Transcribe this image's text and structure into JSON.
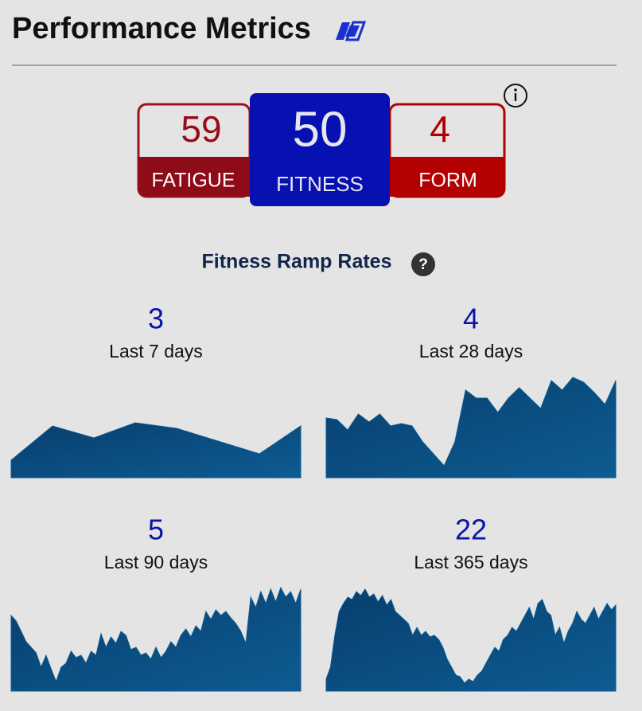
{
  "header": {
    "title": "Performance Metrics"
  },
  "metrics": [
    {
      "value": 59,
      "label": "FATIGUE"
    },
    {
      "value": 50,
      "label": "FITNESS"
    },
    {
      "value": 4,
      "label": "FORM"
    }
  ],
  "section_title": "Fitness Ramp Rates",
  "chart_data": [
    {
      "type": "area",
      "title": 3,
      "subtitle": "Last 7 days",
      "color": "#0b5a8e",
      "ylim": [
        0,
        130
      ],
      "values": [
        22,
        65,
        50,
        69,
        62,
        46,
        30,
        65
      ]
    },
    {
      "type": "area",
      "title": 4,
      "subtitle": "Last 28 days",
      "color": "#0b5a8e",
      "ylim": [
        0,
        130
      ],
      "values": [
        75,
        73,
        60,
        80,
        70,
        80,
        65,
        68,
        65,
        45,
        30,
        15,
        45,
        110,
        100,
        100,
        82,
        100,
        113,
        100,
        87,
        122,
        110,
        126,
        120,
        107,
        92,
        122
      ]
    },
    {
      "type": "area",
      "title": 5,
      "subtitle": "Last 90 days",
      "color": "#0b5a8e",
      "ylim": [
        0,
        133
      ],
      "values": [
        95,
        88,
        75,
        62,
        55,
        48,
        30,
        45,
        28,
        12,
        30,
        35,
        50,
        42,
        45,
        35,
        50,
        45,
        72,
        55,
        68,
        60,
        75,
        70,
        52,
        55,
        45,
        48,
        40,
        55,
        42,
        50,
        62,
        55,
        70,
        78,
        68,
        82,
        75,
        100,
        90,
        102,
        95,
        100,
        92,
        85,
        75,
        60,
        118,
        105,
        125,
        110,
        128,
        112,
        130,
        118,
        125,
        110,
        128
      ]
    },
    {
      "type": "area",
      "title": 22,
      "subtitle": "Last 365 days",
      "color": "#0b5a8e",
      "ylim": [
        0,
        133
      ],
      "values": [
        15,
        30,
        70,
        100,
        110,
        118,
        115,
        125,
        120,
        128,
        118,
        122,
        112,
        120,
        108,
        115,
        100,
        95,
        90,
        85,
        70,
        80,
        70,
        75,
        68,
        70,
        65,
        55,
        40,
        30,
        20,
        18,
        10,
        15,
        12,
        20,
        25,
        35,
        45,
        55,
        50,
        65,
        70,
        80,
        75,
        85,
        95,
        105,
        90,
        110,
        115,
        100,
        95,
        70,
        80,
        60,
        75,
        85,
        100,
        90,
        85,
        95,
        105,
        90,
        100,
        110,
        102,
        108
      ]
    }
  ]
}
